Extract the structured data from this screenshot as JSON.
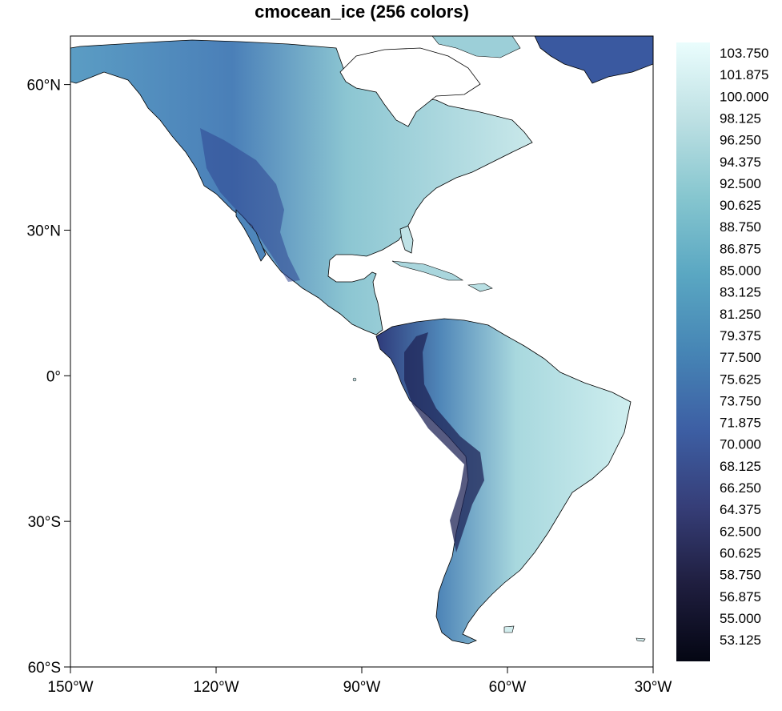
{
  "title": "cmocean_ice (256 colors)",
  "map": {
    "projection": "cylindrical equidistant",
    "lon_range": [
      -150,
      -30
    ],
    "lat_range": [
      -60,
      70
    ],
    "x_ticks": [
      {
        "value": -150,
        "label": "150°W"
      },
      {
        "value": -120,
        "label": "120°W"
      },
      {
        "value": -90,
        "label": "90°W"
      },
      {
        "value": -60,
        "label": "60°W"
      },
      {
        "value": -30,
        "label": "30°W"
      }
    ],
    "y_ticks": [
      {
        "value": 60,
        "label": "60°N"
      },
      {
        "value": 30,
        "label": "30°N"
      },
      {
        "value": 0,
        "label": "0°"
      },
      {
        "value": -30,
        "label": "30°S"
      },
      {
        "value": -60,
        "label": "60°S"
      }
    ],
    "background": "#ffffff",
    "coastline_color": "#000000"
  },
  "colorbar": {
    "colormap": "cmocean_ice",
    "n_colors": 256,
    "range": [
      52,
      105
    ],
    "labels": [
      "103.750",
      "101.875",
      "100.000",
      "98.125",
      "96.250",
      "94.375",
      "92.500",
      "90.625",
      "88.750",
      "86.875",
      "85.000",
      "83.125",
      "81.250",
      "79.375",
      "77.500",
      "75.625",
      "73.750",
      "71.875",
      "70.000",
      "68.125",
      "66.250",
      "64.375",
      "62.500",
      "60.625",
      "58.750",
      "56.875",
      "55.000",
      "53.125"
    ],
    "stops": [
      "#040613",
      "#1f1e3f",
      "#363e78",
      "#3d5fa4",
      "#4685b5",
      "#5aa7c2",
      "#86c6cf",
      "#bde0e3",
      "#eafdfd"
    ]
  }
}
